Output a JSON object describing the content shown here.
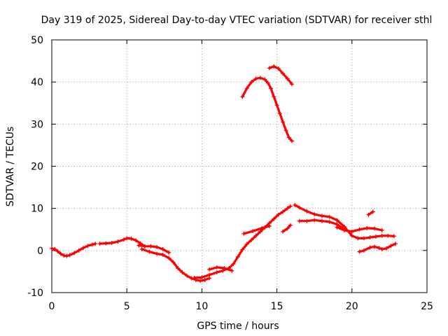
{
  "chart_data": {
    "type": "scatter",
    "title": "Day 319 of 2025, Sidereal Day-to-day VTEC variation (SDTVAR) for receiver sthl",
    "xlabel": "GPS time / hours",
    "ylabel": "SDTVAR / TECUs",
    "xlim": [
      0,
      25
    ],
    "ylim": [
      -10,
      50
    ],
    "xticks": [
      0,
      5,
      10,
      15,
      20,
      25
    ],
    "yticks": [
      -10,
      0,
      10,
      20,
      30,
      40,
      50
    ],
    "grid": true,
    "color": "#ff0000",
    "series": [
      {
        "name": "trace-1",
        "x": [
          0,
          0.2,
          0.4,
          0.6,
          0.8,
          1.0,
          1.2,
          1.5,
          1.8,
          2.1,
          2.4,
          2.7,
          2.9
        ],
        "y": [
          0.5,
          0.3,
          -0.2,
          -0.8,
          -1.2,
          -1.3,
          -1.1,
          -0.6,
          0,
          0.6,
          1.1,
          1.4,
          1.6
        ]
      },
      {
        "name": "trace-2",
        "x": [
          3.2,
          3.6,
          4.0,
          4.4,
          4.8,
          5.0,
          5.3,
          5.6,
          5.9,
          6.2
        ],
        "y": [
          1.6,
          1.7,
          1.8,
          2.1,
          2.6,
          2.9,
          2.8,
          2.4,
          1.7,
          1.0
        ]
      },
      {
        "name": "trace-3",
        "x": [
          5.8,
          6.2,
          6.6,
          7.0,
          7.4,
          7.8
        ],
        "y": [
          1.2,
          1.0,
          1.0,
          0.8,
          0.3,
          -0.5
        ]
      },
      {
        "name": "trace-4",
        "x": [
          6.0,
          6.5,
          7.0,
          7.4,
          7.8,
          8.1,
          8.4,
          8.7,
          9.0,
          9.3,
          9.6,
          9.9,
          10.2,
          10.5
        ],
        "y": [
          0.3,
          -0.3,
          -0.8,
          -1.0,
          -1.8,
          -2.8,
          -4.2,
          -5.2,
          -6.0,
          -6.6,
          -7.0,
          -7.2,
          -7.0,
          -6.6
        ]
      },
      {
        "name": "trace-5",
        "x": [
          9.5,
          10.0,
          10.5,
          11.0,
          11.4,
          11.8,
          12.1,
          12.4,
          12.7,
          13.0,
          13.3,
          13.6,
          13.9,
          14.2,
          14.5,
          14.8,
          15.1,
          15.4,
          15.7,
          15.9
        ],
        "y": [
          -6.5,
          -6.4,
          -5.8,
          -5.2,
          -4.8,
          -4.2,
          -3.2,
          -1.5,
          0.2,
          1.5,
          2.5,
          3.5,
          4.5,
          5.5,
          6.5,
          7.5,
          8.5,
          9.2,
          10.0,
          10.5
        ]
      },
      {
        "name": "trace-6",
        "x": [
          10.5,
          11.0,
          11.5,
          12.0
        ],
        "y": [
          -4.5,
          -4.0,
          -4.2,
          -4.8
        ]
      },
      {
        "name": "trace-7",
        "x": [
          12.8,
          13.4,
          14.0,
          14.5
        ],
        "y": [
          4.0,
          4.6,
          5.3,
          5.8
        ]
      },
      {
        "name": "trace-8",
        "x": [
          15.4,
          15.7,
          15.9
        ],
        "y": [
          4.5,
          5.2,
          6.0
        ]
      },
      {
        "name": "trace-9",
        "x": [
          16.2,
          16.5,
          17.0,
          17.5,
          18.0,
          18.5,
          19.0,
          19.5,
          20.0,
          20.4,
          20.8,
          21.2,
          21.6,
          22.0,
          22.4,
          22.8
        ],
        "y": [
          10.8,
          10.2,
          9.3,
          8.6,
          8.2,
          8.0,
          7.2,
          5.6,
          3.5,
          2.9,
          2.9,
          3.1,
          3.3,
          3.5,
          3.5,
          3.4
        ]
      },
      {
        "name": "trace-10",
        "x": [
          16.5,
          17.0,
          17.5,
          18.0,
          18.5,
          19.0,
          19.5
        ],
        "y": [
          7.0,
          7.0,
          7.2,
          7.0,
          6.8,
          6.2,
          5.0
        ]
      },
      {
        "name": "trace-11",
        "x": [
          19.0,
          19.5,
          20.0,
          20.5,
          21.0,
          21.5,
          22.0
        ],
        "y": [
          5.5,
          4.8,
          4.5,
          5.0,
          5.3,
          5.2,
          4.8
        ]
      },
      {
        "name": "trace-12",
        "x": [
          20.5,
          20.8,
          21.2,
          21.5,
          21.8,
          22.0,
          22.3,
          22.6,
          22.9
        ],
        "y": [
          -0.3,
          0,
          0.7,
          0.9,
          0.6,
          0.3,
          0.5,
          1.1,
          1.6
        ]
      },
      {
        "name": "trace-13",
        "x": [
          21.1,
          21.4
        ],
        "y": [
          8.5,
          9.2
        ]
      },
      {
        "name": "trace-14",
        "x": [
          12.7,
          13.0,
          13.3,
          13.6,
          13.9,
          14.2,
          14.4,
          14.6,
          14.8,
          15.0,
          15.2,
          15.4,
          15.6,
          15.8,
          16.0
        ],
        "y": [
          36.5,
          38.5,
          40.0,
          40.8,
          41.0,
          40.6,
          39.8,
          38.5,
          36.5,
          34.5,
          32.5,
          30.5,
          28.5,
          26.8,
          26.0
        ]
      },
      {
        "name": "trace-15",
        "x": [
          14.5,
          14.8,
          15.1,
          15.4,
          15.7,
          16.0
        ],
        "y": [
          43.3,
          43.7,
          43.2,
          42.0,
          40.8,
          39.5
        ]
      }
    ]
  }
}
